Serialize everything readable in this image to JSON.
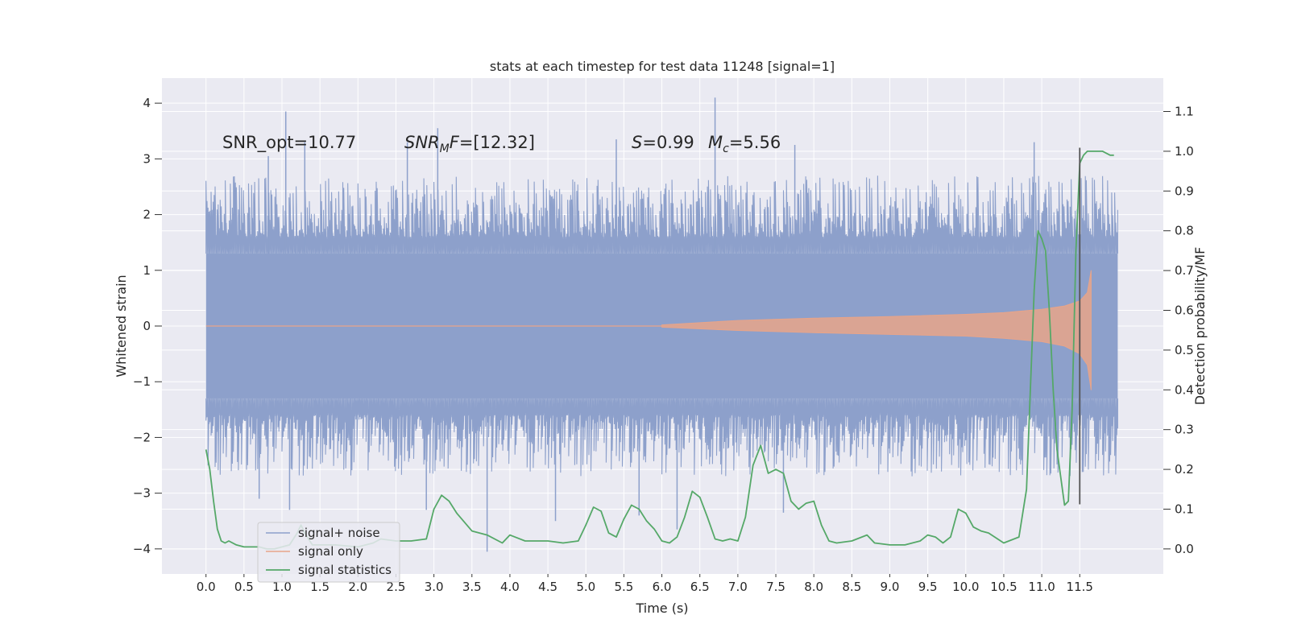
{
  "chart_data": {
    "type": "line",
    "title": "stats at each timestep for test data 11248 [signal=1]",
    "xlabel": "Time (s)",
    "ylabel": "Whitened strain",
    "y2label": "Detection probability/MF",
    "xlim": [
      -0.58,
      12.6
    ],
    "ylim": [
      -4.45,
      4.45
    ],
    "y2lim": [
      -0.063,
      1.184
    ],
    "x_ticks": [
      0.0,
      0.5,
      1.0,
      1.5,
      2.0,
      2.5,
      3.0,
      3.5,
      4.0,
      4.5,
      5.0,
      5.5,
      6.0,
      6.5,
      7.0,
      7.5,
      8.0,
      8.5,
      9.0,
      9.5,
      10.0,
      10.5,
      11.0,
      11.5
    ],
    "x_tick_labels": [
      "0.0",
      "0.5",
      "1.0",
      "1.5",
      "2.0",
      "2.5",
      "3.0",
      "3.5",
      "4.0",
      "4.5",
      "5.0",
      "5.5",
      "6.0",
      "6.5",
      "7.0",
      "7.5",
      "8.0",
      "8.5",
      "9.0",
      "9.5",
      "10.0",
      "10.5",
      "11.0",
      "11.5"
    ],
    "y_ticks": [
      -4,
      -3,
      -2,
      -1,
      0,
      1,
      2,
      3,
      4
    ],
    "y_tick_labels": [
      "−4",
      "−3",
      "−2",
      "−1",
      "0",
      "1",
      "2",
      "3",
      "4"
    ],
    "y2_ticks": [
      0.0,
      0.1,
      0.2,
      0.3,
      0.4,
      0.5,
      0.6,
      0.7,
      0.8,
      0.9,
      1.0,
      1.1
    ],
    "y2_tick_labels": [
      "0.0",
      "0.1",
      "0.2",
      "0.3",
      "0.4",
      "0.5",
      "0.6",
      "0.7",
      "0.8",
      "0.9",
      "1.0",
      "1.1"
    ],
    "grid": true,
    "legend_placement": "lower-left",
    "series": [
      {
        "name": "signal+ noise",
        "color": "#8da0cb",
        "kind": "noise band",
        "x_range": [
          0.0,
          12.0
        ],
        "core_amplitude": 1.3,
        "typical_peak_range": [
          1.6,
          2.7
        ],
        "extreme_peaks": [
          {
            "x": 1.05,
            "y": 3.85
          },
          {
            "x": 0.82,
            "y": 3.05
          },
          {
            "x": 1.3,
            "y": 3.3
          },
          {
            "x": 2.65,
            "y": 3.3
          },
          {
            "x": 3.05,
            "y": 3.55
          },
          {
            "x": 5.4,
            "y": 3.35
          },
          {
            "x": 6.7,
            "y": 4.1
          },
          {
            "x": 7.75,
            "y": 3.25
          },
          {
            "x": 10.9,
            "y": 3.3
          },
          {
            "x": 1.1,
            "y": -3.3
          },
          {
            "x": 2.9,
            "y": -3.3
          },
          {
            "x": 3.7,
            "y": -4.05
          },
          {
            "x": 4.6,
            "y": -3.5
          },
          {
            "x": 5.7,
            "y": -3.4
          },
          {
            "x": 6.2,
            "y": -3.65
          },
          {
            "x": 7.6,
            "y": -3.35
          },
          {
            "x": 0.7,
            "y": -3.1
          }
        ]
      },
      {
        "name": "signal only",
        "color": "#e8a489",
        "kind": "chirp envelope",
        "envelope_x": [
          6.0,
          7.0,
          8.0,
          9.0,
          10.0,
          10.5,
          11.0,
          11.3,
          11.5,
          11.6,
          11.65
        ],
        "envelope_upper": [
          0.02,
          0.1,
          0.14,
          0.17,
          0.21,
          0.24,
          0.3,
          0.36,
          0.45,
          0.6,
          1.0
        ],
        "envelope_lower": [
          -0.02,
          -0.08,
          -0.12,
          -0.15,
          -0.18,
          -0.22,
          -0.28,
          -0.36,
          -0.5,
          -0.7,
          -1.15
        ]
      },
      {
        "name": "signal statistics",
        "color": "#55a868",
        "axis": "right",
        "x": [
          0.0,
          0.05,
          0.1,
          0.15,
          0.2,
          0.25,
          0.3,
          0.4,
          0.5,
          0.6,
          0.7,
          0.8,
          0.9,
          1.0,
          1.1,
          1.2,
          1.25,
          1.3,
          1.4,
          1.5,
          1.7,
          2.0,
          2.2,
          2.3,
          2.5,
          2.7,
          2.9,
          3.0,
          3.1,
          3.2,
          3.3,
          3.5,
          3.7,
          3.9,
          4.0,
          4.2,
          4.5,
          4.7,
          4.9,
          5.0,
          5.1,
          5.2,
          5.3,
          5.4,
          5.5,
          5.6,
          5.7,
          5.8,
          5.9,
          6.0,
          6.1,
          6.2,
          6.3,
          6.4,
          6.5,
          6.6,
          6.7,
          6.8,
          6.9,
          7.0,
          7.1,
          7.2,
          7.3,
          7.4,
          7.5,
          7.6,
          7.7,
          7.8,
          7.9,
          8.0,
          8.1,
          8.2,
          8.3,
          8.5,
          8.7,
          8.8,
          9.0,
          9.2,
          9.4,
          9.5,
          9.6,
          9.7,
          9.8,
          9.9,
          10.0,
          10.1,
          10.2,
          10.3,
          10.5,
          10.7,
          10.8,
          10.9,
          10.95,
          11.0,
          11.05,
          11.1,
          11.15,
          11.2,
          11.3,
          11.35,
          11.4,
          11.45,
          11.5,
          11.55,
          11.6,
          11.65,
          11.7,
          11.8,
          11.9,
          11.95
        ],
        "y": [
          0.25,
          0.2,
          0.12,
          0.05,
          0.02,
          0.015,
          0.02,
          0.01,
          0.005,
          0.005,
          0.005,
          0.0,
          0.0,
          0.005,
          0.01,
          0.04,
          0.06,
          0.04,
          0.01,
          0.01,
          0.01,
          0.005,
          0.015,
          0.025,
          0.02,
          0.02,
          0.025,
          0.1,
          0.135,
          0.12,
          0.09,
          0.045,
          0.035,
          0.015,
          0.035,
          0.02,
          0.02,
          0.015,
          0.02,
          0.06,
          0.105,
          0.095,
          0.04,
          0.03,
          0.075,
          0.11,
          0.1,
          0.07,
          0.05,
          0.02,
          0.015,
          0.03,
          0.08,
          0.145,
          0.13,
          0.08,
          0.025,
          0.02,
          0.025,
          0.02,
          0.08,
          0.21,
          0.26,
          0.19,
          0.2,
          0.19,
          0.12,
          0.1,
          0.115,
          0.12,
          0.06,
          0.02,
          0.015,
          0.02,
          0.035,
          0.015,
          0.01,
          0.01,
          0.02,
          0.035,
          0.03,
          0.015,
          0.03,
          0.1,
          0.09,
          0.055,
          0.045,
          0.04,
          0.015,
          0.03,
          0.15,
          0.65,
          0.8,
          0.78,
          0.75,
          0.6,
          0.4,
          0.25,
          0.11,
          0.12,
          0.35,
          0.75,
          0.97,
          0.99,
          1.0,
          1.0,
          1.0,
          1.0,
          0.99,
          0.99
        ]
      }
    ],
    "vertical_marker": {
      "x": 11.5,
      "y_range": [
        -3.2,
        3.2
      ],
      "color": "#555555"
    },
    "annotations": {
      "snr_opt": "SNR_opt=10.77",
      "snr_mf_italic": "SNR",
      "snr_mf_sub": "M",
      "snr_mf_tail": "F",
      "snr_mf_value": "=[12.32]",
      "s_symbol": "S",
      "s_value": "=0.99",
      "mc_symbol": "M",
      "mc_sub": "c",
      "mc_value": "=5.56"
    }
  }
}
